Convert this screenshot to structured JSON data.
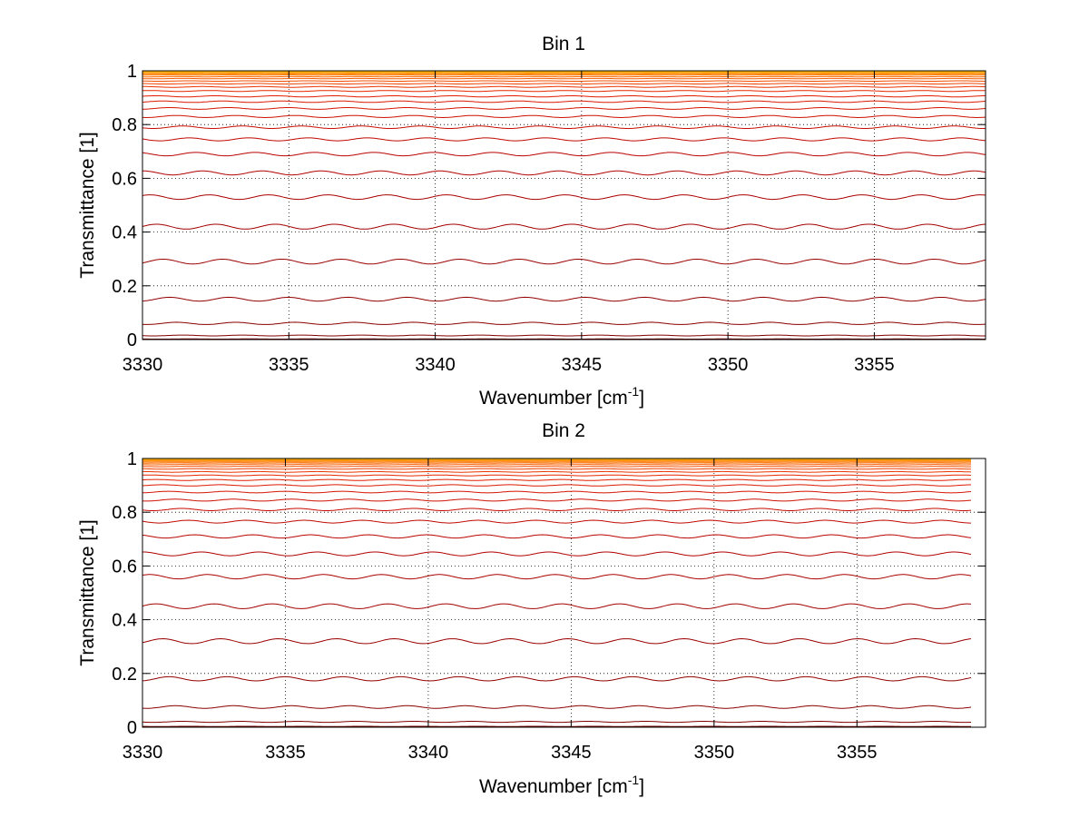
{
  "chart_data": [
    {
      "type": "line",
      "title": "Bin 1",
      "xlabel": "Wavenumber [cm",
      "xlabel_sup": "-1",
      "xlabel_end": "]",
      "ylabel": "Transmittance [1]",
      "xlim": [
        3330,
        3358.8
      ],
      "ylim": [
        0,
        1
      ],
      "grid": true,
      "x_ticks": [
        "3330",
        "3335",
        "3340",
        "3345",
        "3350",
        "3355"
      ],
      "y_ticks": [
        "0",
        "0.2",
        "0.4",
        "0.6",
        "0.8",
        "1"
      ],
      "series_count": 30,
      "series_baselines": [
        0.002,
        0.015,
        0.06,
        0.15,
        0.29,
        0.42,
        0.53,
        0.62,
        0.69,
        0.745,
        0.79,
        0.83,
        0.86,
        0.885,
        0.905,
        0.925,
        0.94,
        0.952,
        0.962,
        0.971,
        0.978,
        0.984,
        0.988,
        0.992,
        0.994,
        0.996,
        0.997,
        0.998,
        0.999,
        1.0
      ],
      "absorption_lines_cm-1": [
        3331.8,
        3333.2,
        3334.9,
        3336.3,
        3337.9,
        3339.35,
        3340.8,
        3342.3,
        3343.5,
        3344.9,
        3346.5,
        3347.9,
        3349.4,
        3350.9,
        3352.4,
        3353.8,
        3355.6,
        3357.1
      ],
      "strong_line_cm-1": 3339.35,
      "color_scale": [
        "#7a0000",
        "#b40000",
        "#e62000",
        "#ff8000",
        "#ffd000"
      ]
    },
    {
      "type": "line",
      "title": "Bin 2",
      "xlabel": "Wavenumber [cm",
      "xlabel_sup": "-1",
      "xlabel_end": "]",
      "ylabel": "Transmittance [1]",
      "xlim": [
        3330,
        3359.5
      ],
      "ylim": [
        0,
        1
      ],
      "grid": true,
      "x_ticks": [
        "3330",
        "3335",
        "3340",
        "3345",
        "3350",
        "3355"
      ],
      "y_ticks": [
        "0",
        "0.2",
        "0.4",
        "0.6",
        "0.8",
        "1"
      ],
      "series_count": 30,
      "series_baselines": [
        0.003,
        0.02,
        0.075,
        0.18,
        0.32,
        0.45,
        0.56,
        0.645,
        0.71,
        0.765,
        0.81,
        0.845,
        0.875,
        0.9,
        0.92,
        0.937,
        0.95,
        0.961,
        0.97,
        0.977,
        0.983,
        0.987,
        0.991,
        0.994,
        0.996,
        0.997,
        0.998,
        0.999,
        0.9995,
        1.0
      ],
      "absorption_lines_cm-1": [
        3331.8,
        3333.2,
        3334.9,
        3336.3,
        3337.9,
        3339.35,
        3340.8,
        3342.3,
        3343.5,
        3344.9,
        3346.5,
        3347.9,
        3349.4,
        3350.9,
        3352.4,
        3353.8,
        3355.6,
        3357.1
      ],
      "strong_line_cm-1": 3339.35,
      "color_scale": [
        "#7a0000",
        "#b40000",
        "#e62000",
        "#ff8000",
        "#ffd000"
      ]
    }
  ]
}
